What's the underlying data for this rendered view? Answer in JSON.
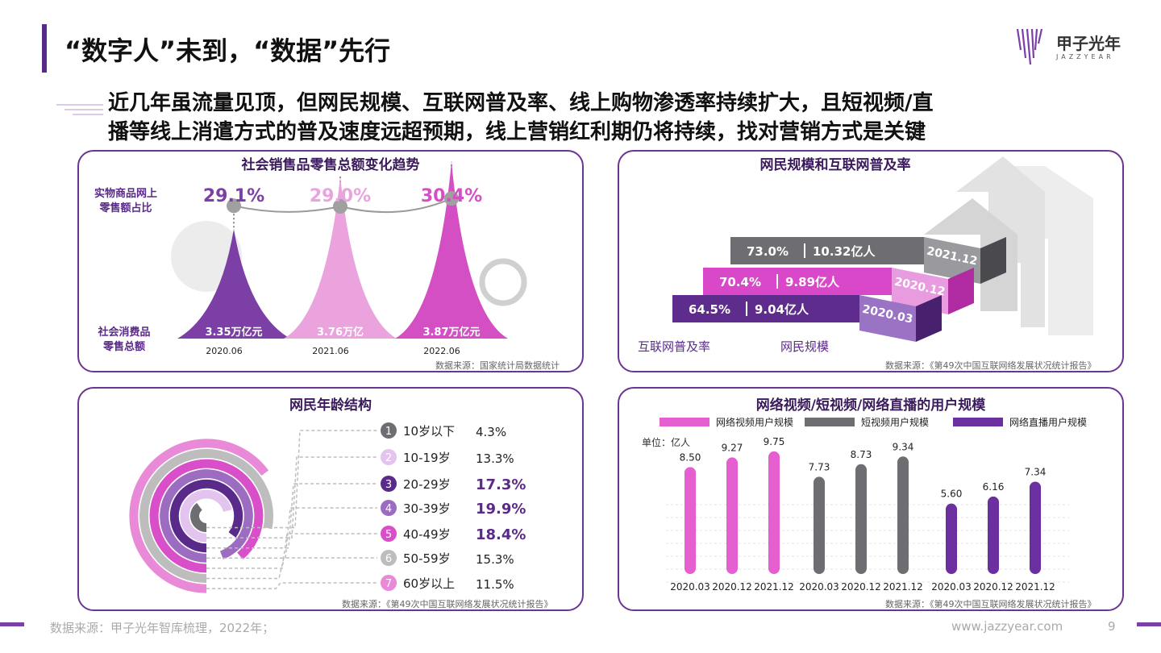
{
  "header": {
    "title": "“数字人”未到，“数据”先行",
    "subtitle_line1": "近几年虽流量见顶，但网民规模、互联网普及率、线上购物渗透率持续扩大，且短视频/直",
    "subtitle_line2": "播等线上消遣方式的普及速度远超预期，线上营销红利期仍将持续，找对营销方式是关键",
    "logo_text": "甲子光年",
    "logo_sub": "JAZZYEAR"
  },
  "footer": {
    "source": "数据来源：甲子光年智库梳理，2022年；",
    "url": "www.jazzyear.com",
    "page": "9"
  },
  "chart_data": [
    {
      "type": "area",
      "title": "社会销售品零售总额变化趋势",
      "row_label_top": "实物商品网上零售额占比",
      "row_label_bottom": "社会消费品零售总额",
      "categories": [
        "2020.06",
        "2021.06",
        "2022.06"
      ],
      "online_share": [
        "29.1%",
        "29.0%",
        "30.4%"
      ],
      "online_share_values": [
        29.1,
        29.0,
        30.4
      ],
      "retail_totals": [
        "3.35万亿元",
        "3.76万亿",
        "3.87万亿元"
      ],
      "retail_values": [
        3.35,
        3.76,
        3.87
      ],
      "colors": [
        "#7b3fa6",
        "#eaa3dc",
        "#d44fc4"
      ],
      "source": "数据来源：国家统计局数据统计"
    },
    {
      "type": "bar",
      "title": "网民规模和互联网普及率",
      "rows": [
        {
          "year": "2021.12",
          "penetration": "73.0%",
          "users": "10.32亿人",
          "color": "#6d6d72"
        },
        {
          "year": "2020.12",
          "penetration": "70.4%",
          "users": "9.89亿人",
          "color": "#d948c8"
        },
        {
          "year": "2020.03",
          "penetration": "64.5%",
          "users": "9.04亿人",
          "color": "#5e2c8c"
        }
      ],
      "legend": [
        "互联网普及率",
        "网民规模"
      ],
      "source": "数据来源：《第49次中国互联网络发展状况统计报告》"
    },
    {
      "type": "pie",
      "title": "网民年龄结构",
      "items": [
        {
          "num": "1",
          "label": "10岁以下",
          "value": "4.3%",
          "v": 4.3,
          "color": "#6e6e72",
          "bold": false
        },
        {
          "num": "2",
          "label": "10-19岁",
          "value": "13.3%",
          "v": 13.3,
          "color": "#e3c4ee",
          "bold": false
        },
        {
          "num": "3",
          "label": "20-29岁",
          "value": "17.3%",
          "v": 17.3,
          "color": "#5a2a8a",
          "bold": true
        },
        {
          "num": "4",
          "label": "30-39岁",
          "value": "19.9%",
          "v": 19.9,
          "color": "#9b6cc0",
          "bold": true
        },
        {
          "num": "5",
          "label": "40-49岁",
          "value": "18.4%",
          "v": 18.4,
          "color": "#d84fc9",
          "bold": true
        },
        {
          "num": "6",
          "label": "50-59岁",
          "value": "15.3%",
          "v": 15.3,
          "color": "#bdbdbd",
          "bold": false
        },
        {
          "num": "7",
          "label": "60岁以上",
          "value": "11.5%",
          "v": 11.5,
          "color": "#e98ad8",
          "bold": false
        }
      ],
      "source": "数据来源：《第49次中国互联网络发展状况统计报告》"
    },
    {
      "type": "bar",
      "title": "网络视频/短视频/网络直播的用户规模",
      "unit_label": "单位：亿人",
      "series": [
        {
          "name": "网络视频用户规模",
          "color": "#e65fd0",
          "categories": [
            "2020.03",
            "2020.12",
            "2021.12"
          ],
          "values": [
            8.5,
            9.27,
            9.75
          ],
          "labels": [
            "8.50",
            "9.27",
            "9.75"
          ]
        },
        {
          "name": "短视频用户规模",
          "color": "#6e6e72",
          "categories": [
            "2020.03",
            "2020.12",
            "2021.12"
          ],
          "values": [
            7.73,
            8.73,
            9.34
          ],
          "labels": [
            "7.73",
            "8.73",
            "9.34"
          ]
        },
        {
          "name": "网络直播用户规模",
          "color": "#6b2f9f",
          "categories": [
            "2020.03",
            "2020.12",
            "2021.12"
          ],
          "values": [
            5.6,
            6.16,
            7.34
          ],
          "labels": [
            "5.60",
            "6.16",
            "7.34"
          ]
        }
      ],
      "source": "数据来源：《第49次中国互联网络发展状况统计报告》"
    }
  ]
}
